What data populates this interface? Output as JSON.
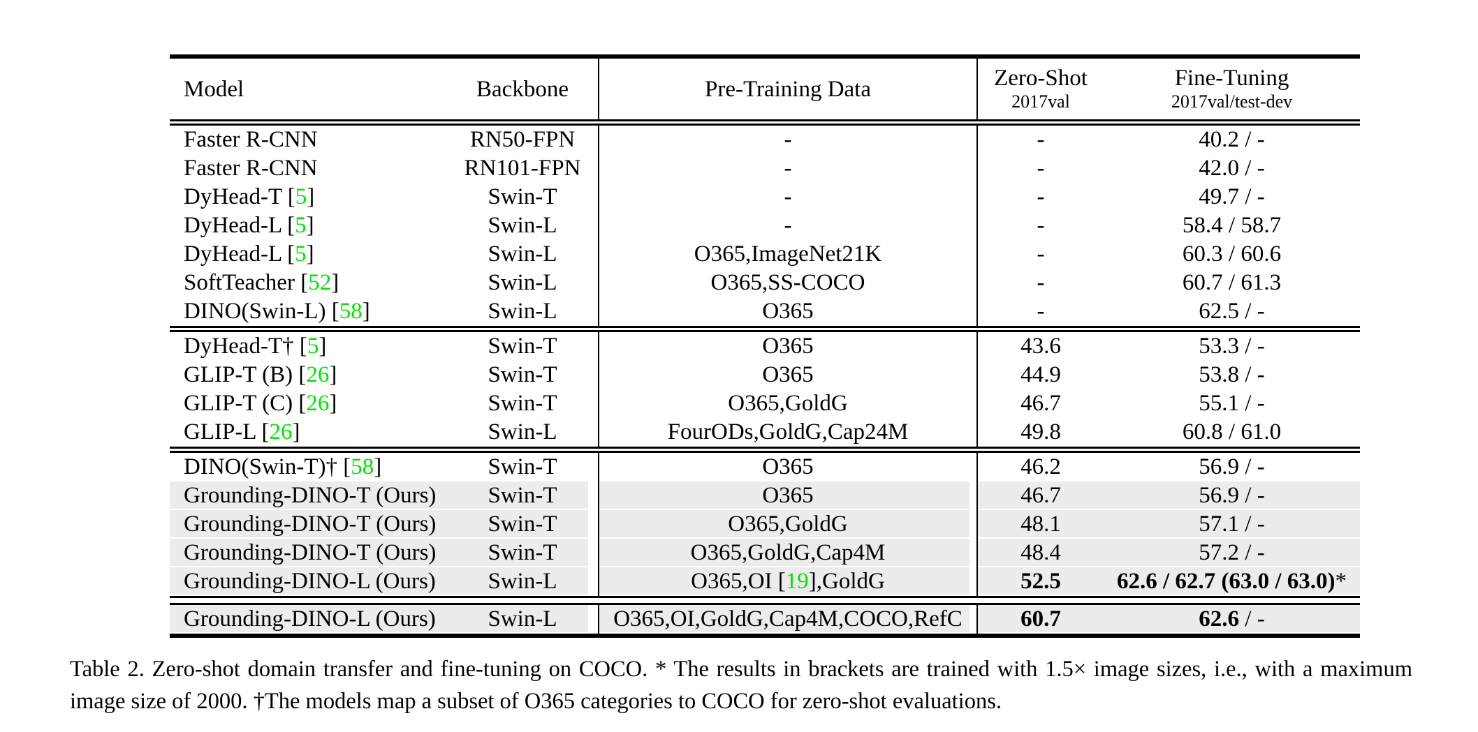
{
  "colors": {
    "citation_green": "#00e400",
    "row_shade": "#ececec",
    "text": "#000000",
    "background": "#ffffff"
  },
  "header": {
    "model": "Model",
    "backbone": "Backbone",
    "pretraining": "Pre-Training Data",
    "zero_shot": {
      "line1": "Zero-Shot",
      "line2": "2017val"
    },
    "fine_tuning": {
      "line1": "Fine-Tuning",
      "line2": "2017val/test-dev"
    }
  },
  "blocks": [
    {
      "rows": [
        {
          "shaded": false,
          "model": [
            {
              "text": "Faster R-CNN"
            }
          ],
          "backbone": "RN50-FPN",
          "pretraining": [
            {
              "text": "-"
            }
          ],
          "zero_shot": [
            {
              "text": "-"
            }
          ],
          "fine_tuning": [
            {
              "text": "40.2 / -"
            }
          ]
        },
        {
          "shaded": false,
          "model": [
            {
              "text": "Faster R-CNN"
            }
          ],
          "backbone": "RN101-FPN",
          "pretraining": [
            {
              "text": "-"
            }
          ],
          "zero_shot": [
            {
              "text": "-"
            }
          ],
          "fine_tuning": [
            {
              "text": "42.0 / -"
            }
          ]
        },
        {
          "shaded": false,
          "model": [
            {
              "text": "DyHead-T ["
            },
            {
              "text": "5",
              "green": true
            },
            {
              "text": "]"
            }
          ],
          "backbone": "Swin-T",
          "pretraining": [
            {
              "text": "-"
            }
          ],
          "zero_shot": [
            {
              "text": "-"
            }
          ],
          "fine_tuning": [
            {
              "text": "49.7 / -"
            }
          ]
        },
        {
          "shaded": false,
          "model": [
            {
              "text": "DyHead-L ["
            },
            {
              "text": "5",
              "green": true
            },
            {
              "text": "]"
            }
          ],
          "backbone": "Swin-L",
          "pretraining": [
            {
              "text": "-"
            }
          ],
          "zero_shot": [
            {
              "text": "-"
            }
          ],
          "fine_tuning": [
            {
              "text": "58.4 / 58.7"
            }
          ]
        },
        {
          "shaded": false,
          "model": [
            {
              "text": "DyHead-L ["
            },
            {
              "text": "5",
              "green": true
            },
            {
              "text": "]"
            }
          ],
          "backbone": "Swin-L",
          "pretraining": [
            {
              "text": "O365,ImageNet21K"
            }
          ],
          "zero_shot": [
            {
              "text": "-"
            }
          ],
          "fine_tuning": [
            {
              "text": "60.3 / 60.6"
            }
          ]
        },
        {
          "shaded": false,
          "model": [
            {
              "text": "SoftTeacher ["
            },
            {
              "text": "52",
              "green": true
            },
            {
              "text": "]"
            }
          ],
          "backbone": "Swin-L",
          "pretraining": [
            {
              "text": "O365,SS-COCO"
            }
          ],
          "zero_shot": [
            {
              "text": "-"
            }
          ],
          "fine_tuning": [
            {
              "text": "60.7 / 61.3"
            }
          ]
        },
        {
          "shaded": false,
          "model": [
            {
              "text": "DINO(Swin-L) ["
            },
            {
              "text": "58",
              "green": true
            },
            {
              "text": "]"
            }
          ],
          "backbone": "Swin-L",
          "pretraining": [
            {
              "text": "O365"
            }
          ],
          "zero_shot": [
            {
              "text": "-"
            }
          ],
          "fine_tuning": [
            {
              "text": "62.5 / -"
            }
          ]
        }
      ]
    },
    {
      "rows": [
        {
          "shaded": false,
          "model": [
            {
              "text": "DyHead-T† ["
            },
            {
              "text": "5",
              "green": true
            },
            {
              "text": "]"
            }
          ],
          "backbone": "Swin-T",
          "pretraining": [
            {
              "text": "O365"
            }
          ],
          "zero_shot": [
            {
              "text": "43.6"
            }
          ],
          "fine_tuning": [
            {
              "text": "53.3 / -"
            }
          ]
        },
        {
          "shaded": false,
          "model": [
            {
              "text": "GLIP-T (B) ["
            },
            {
              "text": "26",
              "green": true
            },
            {
              "text": "]"
            }
          ],
          "backbone": "Swin-T",
          "pretraining": [
            {
              "text": "O365"
            }
          ],
          "zero_shot": [
            {
              "text": "44.9"
            }
          ],
          "fine_tuning": [
            {
              "text": "53.8 / -"
            }
          ]
        },
        {
          "shaded": false,
          "model": [
            {
              "text": "GLIP-T (C) ["
            },
            {
              "text": "26",
              "green": true
            },
            {
              "text": "]"
            }
          ],
          "backbone": "Swin-T",
          "pretraining": [
            {
              "text": "O365,GoldG"
            }
          ],
          "zero_shot": [
            {
              "text": "46.7"
            }
          ],
          "fine_tuning": [
            {
              "text": "55.1 / -"
            }
          ]
        },
        {
          "shaded": false,
          "model": [
            {
              "text": "GLIP-L ["
            },
            {
              "text": "26",
              "green": true
            },
            {
              "text": "]"
            }
          ],
          "backbone": "Swin-L",
          "pretraining": [
            {
              "text": "FourODs,GoldG,Cap24M"
            }
          ],
          "zero_shot": [
            {
              "text": "49.8"
            }
          ],
          "fine_tuning": [
            {
              "text": "60.8 / 61.0"
            }
          ]
        }
      ]
    },
    {
      "rows": [
        {
          "shaded": false,
          "model": [
            {
              "text": "DINO(Swin-T)† ["
            },
            {
              "text": "58",
              "green": true
            },
            {
              "text": "]"
            }
          ],
          "backbone": "Swin-T",
          "pretraining": [
            {
              "text": "O365"
            }
          ],
          "zero_shot": [
            {
              "text": "46.2"
            }
          ],
          "fine_tuning": [
            {
              "text": "56.9 / -"
            }
          ]
        },
        {
          "shaded": true,
          "model": [
            {
              "text": "Grounding-DINO-T (Ours)"
            }
          ],
          "backbone": "Swin-T",
          "pretraining": [
            {
              "text": "O365"
            }
          ],
          "zero_shot": [
            {
              "text": "46.7"
            }
          ],
          "fine_tuning": [
            {
              "text": "56.9 / -"
            }
          ]
        },
        {
          "shaded": true,
          "model": [
            {
              "text": "Grounding-DINO-T (Ours)"
            }
          ],
          "backbone": "Swin-T",
          "pretraining": [
            {
              "text": "O365,GoldG"
            }
          ],
          "zero_shot": [
            {
              "text": "48.1"
            }
          ],
          "fine_tuning": [
            {
              "text": "57.1 / -"
            }
          ]
        },
        {
          "shaded": true,
          "model": [
            {
              "text": "Grounding-DINO-T (Ours)"
            }
          ],
          "backbone": "Swin-T",
          "pretraining": [
            {
              "text": "O365,GoldG,Cap4M"
            }
          ],
          "zero_shot": [
            {
              "text": "48.4"
            }
          ],
          "fine_tuning": [
            {
              "text": "57.2 / -"
            }
          ]
        },
        {
          "shaded": true,
          "model": [
            {
              "text": "Grounding-DINO-L (Ours)"
            }
          ],
          "backbone": "Swin-L",
          "pretraining": [
            {
              "text": "O365,OI ["
            },
            {
              "text": "19",
              "green": true
            },
            {
              "text": "],GoldG"
            }
          ],
          "zero_shot": [
            {
              "text": "52.5",
              "bold": true
            }
          ],
          "fine_tuning": [
            {
              "text": "62.6 / 62.7 (63.0 / 63.0)",
              "bold": true
            },
            {
              "text": "*"
            }
          ]
        }
      ]
    },
    {
      "rows": [
        {
          "shaded": true,
          "model": [
            {
              "text": "Grounding-DINO-L (Ours)"
            }
          ],
          "backbone": "Swin-L",
          "pretraining": [
            {
              "text": "O365,OI,GoldG,Cap4M,COCO,RefC"
            }
          ],
          "zero_shot": [
            {
              "text": "60.7",
              "bold": true
            }
          ],
          "fine_tuning": [
            {
              "text": "62.6",
              "bold": true
            },
            {
              "text": " / -"
            }
          ]
        }
      ]
    }
  ],
  "caption": "Table 2.  Zero-shot domain transfer and fine-tuning on COCO. * The results in brackets are trained with 1.5× image sizes, i.e., with a maximum image size of 2000. †The models map a subset of O365 categories to COCO for zero-shot evaluations."
}
